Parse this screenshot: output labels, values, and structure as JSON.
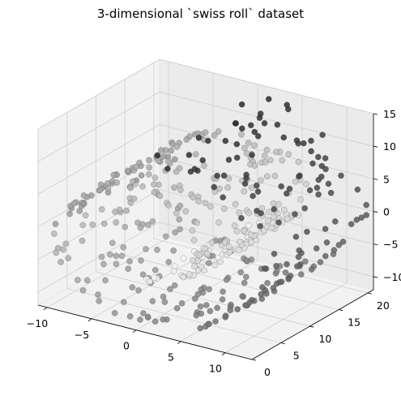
{
  "chart_data": {
    "type": "scatter",
    "projection": "3d",
    "title": "3-dimensional `swiss roll` dataset",
    "xlabel": "",
    "ylabel": "",
    "zlabel": "",
    "xlim": [
      -11,
      13
    ],
    "ylim": [
      0,
      21
    ],
    "zlim": [
      -12,
      15
    ],
    "x_ticks": [
      "−10",
      "−5",
      "0",
      "5",
      "10"
    ],
    "y_ticks": [
      "0",
      "5",
      "10",
      "15",
      "20"
    ],
    "z_ticks": [
      "−10",
      "−5",
      "0",
      "5",
      "10",
      "15"
    ],
    "colormap": "gray",
    "grid": true,
    "legend": "none",
    "n_points": 500,
    "roll_params": {
      "t_min": 4.712,
      "t_max": 14.137,
      "height": 21
    }
  }
}
